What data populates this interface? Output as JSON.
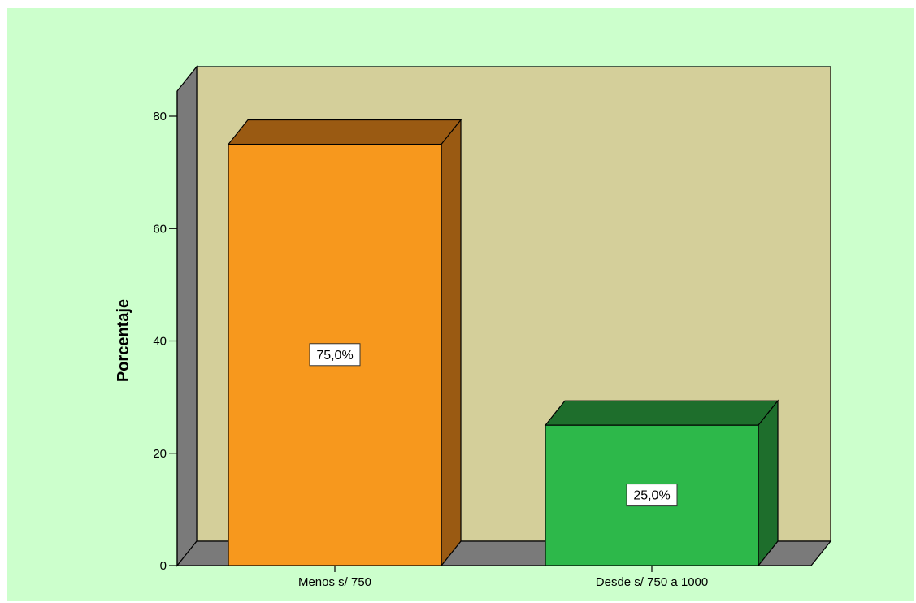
{
  "chart_data": {
    "type": "bar",
    "categories": [
      "Menos s/ 750",
      "Desde s/ 750 a 1000"
    ],
    "values": [
      75.0,
      25.0
    ],
    "data_labels": [
      "75,0%",
      "25,0%"
    ],
    "title": "",
    "xlabel": "",
    "ylabel": "Porcentaje",
    "ylim": [
      0,
      80
    ],
    "yticks": [
      "0",
      "20",
      "40",
      "60",
      "80"
    ],
    "grid": false,
    "three_d": true
  },
  "colors": {
    "page_background": "#ccffcc",
    "plot_background": "#d4cf9a",
    "wall_side": "#7a7a7a",
    "floor": "#7a7a7a",
    "bar_fronts": [
      "#f7981d",
      "#2db84a"
    ],
    "bar_tops": [
      "#9a5a12",
      "#1e6e2c"
    ],
    "bar_sides": [
      "#9a5a12",
      "#1e6e2c"
    ]
  }
}
